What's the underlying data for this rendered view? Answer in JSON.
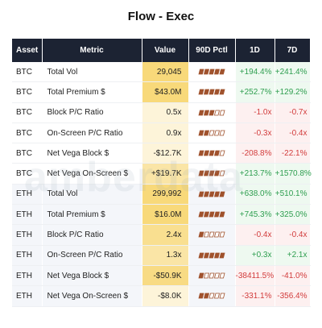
{
  "title": "Flow - Exec",
  "watermark": "amberdata",
  "table": {
    "header": [
      "Asset",
      "Metric",
      "Value",
      "90D Pctl",
      "1D",
      "7D"
    ],
    "pctl_color": "#a0522d",
    "rows": [
      {
        "asset": "BTC",
        "metric": "Total Vol",
        "value": "29,045",
        "value_bg": "#f8d97a",
        "pctl": 5,
        "d1": "+194.4%",
        "d7": "+241.4%"
      },
      {
        "asset": "BTC",
        "metric": "Total Premium $",
        "value": "$43.0M",
        "value_bg": "#f8d97a",
        "pctl": 5,
        "d1": "+252.7%",
        "d7": "+129.2%"
      },
      {
        "asset": "BTC",
        "metric": "Block P/C Ratio",
        "value": "0.5x",
        "value_bg": "#fdf4d9",
        "pctl": 3,
        "d1": "-1.0x",
        "d7": "-0.7x"
      },
      {
        "asset": "BTC",
        "metric": "On-Screen P/C Ratio",
        "value": "0.9x",
        "value_bg": "#fdf4d9",
        "pctl": 2,
        "d1": "-0.3x",
        "d7": "-0.4x"
      },
      {
        "asset": "BTC",
        "metric": "Net Vega Block $",
        "value": "-$12.7K",
        "value_bg": "#fdf4d9",
        "pctl": 4,
        "d1": "-208.8%",
        "d7": "-22.1%"
      },
      {
        "asset": "BTC",
        "metric": "Net Vega On-Screen $",
        "value": "+$19.7K",
        "value_bg": "#fae5a6",
        "pctl": 4,
        "d1": "+213.7%",
        "d7": "+1570.8%"
      },
      {
        "asset": "ETH",
        "metric": "Total Vol",
        "value": "299,992",
        "value_bg": "#f8d97a",
        "pctl": 5,
        "d1": "+638.0%",
        "d7": "+510.1%"
      },
      {
        "asset": "ETH",
        "metric": "Total Premium $",
        "value": "$16.0M",
        "value_bg": "#f8d97a",
        "pctl": 5,
        "d1": "+745.3%",
        "d7": "+325.0%"
      },
      {
        "asset": "ETH",
        "metric": "Block P/C Ratio",
        "value": "2.4x",
        "value_bg": "#f9df90",
        "pctl": 1,
        "d1": "-0.4x",
        "d7": "-0.4x"
      },
      {
        "asset": "ETH",
        "metric": "On-Screen P/C Ratio",
        "value": "1.3x",
        "value_bg": "#fae5a6",
        "pctl": 5,
        "d1": "+0.3x",
        "d7": "+2.1x"
      },
      {
        "asset": "ETH",
        "metric": "Net Vega Block $",
        "value": "-$50.9K",
        "value_bg": "#f8db84",
        "pctl": 1,
        "d1": "-38411.5%",
        "d7": "-41.0%"
      },
      {
        "asset": "ETH",
        "metric": "Net Vega On-Screen $",
        "value": "-$8.0K",
        "value_bg": "#fdf4d9",
        "pctl": 2,
        "d1": "-331.1%",
        "d7": "-356.4%"
      }
    ]
  }
}
